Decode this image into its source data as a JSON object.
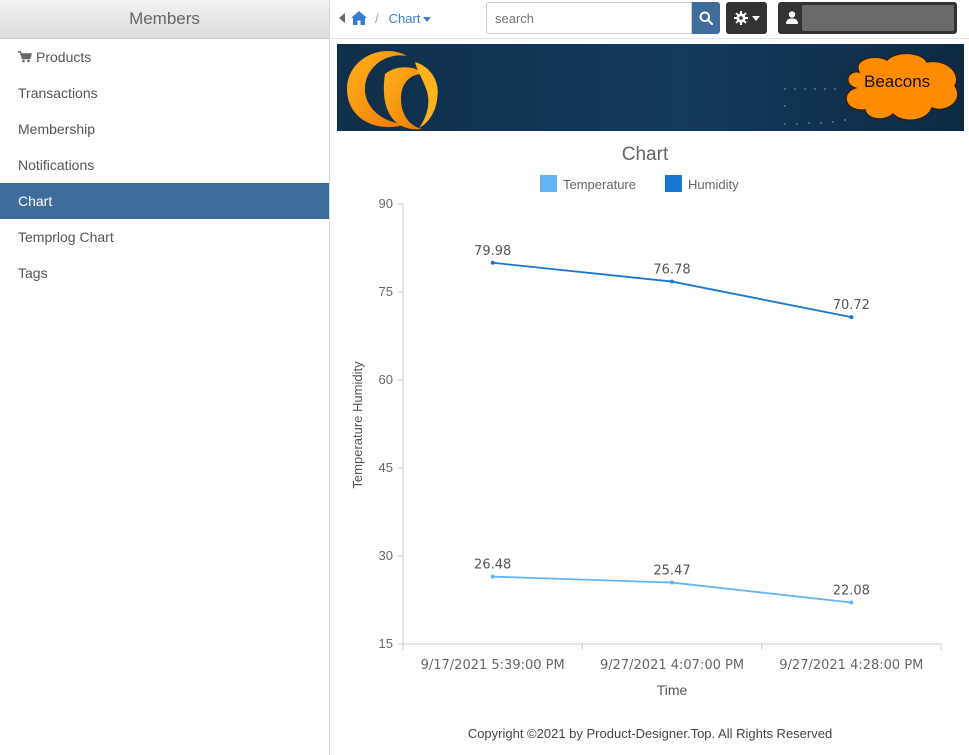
{
  "sidebar": {
    "header": "Members",
    "items": [
      {
        "label": "Products",
        "icon": "cart-icon"
      },
      {
        "label": "Transactions"
      },
      {
        "label": "Membership"
      },
      {
        "label": "Notifications"
      },
      {
        "label": "Chart",
        "active": true
      },
      {
        "label": "Temprlog Chart"
      },
      {
        "label": "Tags"
      }
    ]
  },
  "topbar": {
    "breadcrumb_sep": "/",
    "breadcrumb_current": "Chart",
    "search_placeholder": "search"
  },
  "banner": {
    "bubble_text": "Beacons"
  },
  "colors": {
    "temperature": "#64b5f6",
    "humidity": "#1976d2",
    "nav_active": "#3f6c9b"
  },
  "chart_data": {
    "type": "line",
    "title": "Chart",
    "xlabel": "Time",
    "ylabel": "Temperature Humidity",
    "ylim": [
      15,
      90
    ],
    "yticks": [
      15,
      30,
      45,
      60,
      75,
      90
    ],
    "categories": [
      "9/17/2021 5:39:00 PM",
      "9/27/2021 4:07:00 PM",
      "9/27/2021 4:28:00 PM"
    ],
    "legend_position": "top",
    "series": [
      {
        "name": "Temperature",
        "color": "#64b5f6",
        "values": [
          26.48,
          25.47,
          22.08
        ]
      },
      {
        "name": "Humidity",
        "color": "#1976d2",
        "values": [
          79.98,
          76.78,
          70.72
        ]
      }
    ]
  },
  "footer": {
    "text": "Copyright ©2021 by Product-Designer.Top. All Rights Reserved"
  }
}
